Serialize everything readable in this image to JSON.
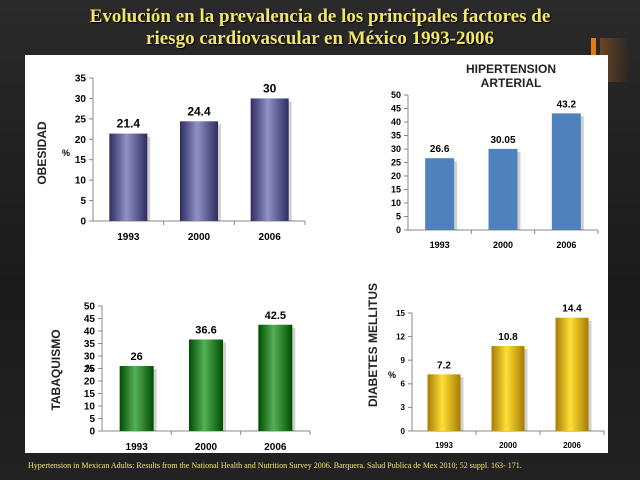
{
  "title": {
    "line1": "Evolución en la prevalencia de los principales factores de",
    "line2": "riesgo cardiovascular en México 1993-2006"
  },
  "footer": "Hypertension in Mexican Adults: Results from the National Health  and Nutrition Survey 2006. Barquera. Salud Publica de Mex 2010; 52 suppl. 163- 171.",
  "colors": {
    "title": "#f2e66a",
    "accent": "#e57a14"
  },
  "chart_data": [
    {
      "id": "obesidad",
      "type": "bar",
      "ylabel": "OBESIDAD",
      "unit": "%",
      "categories": [
        "1993",
        "2000",
        "2006"
      ],
      "values": [
        21.4,
        24.4,
        30
      ],
      "value_labels": [
        "21.4",
        "24.4",
        "30"
      ],
      "ylim": [
        0,
        35
      ],
      "yticks": [
        0,
        5,
        10,
        15,
        20,
        25,
        30,
        35
      ],
      "color": "#5a5a8f"
    },
    {
      "id": "hipertension",
      "type": "bar",
      "title": "HIPERTENSION ARTERIAL",
      "categories": [
        "1993",
        "2000",
        "2006"
      ],
      "values": [
        26.6,
        30.05,
        43.2
      ],
      "value_labels": [
        "26.6",
        "30.05",
        "43.2"
      ],
      "ylim": [
        0,
        50
      ],
      "yticks": [
        0,
        5,
        10,
        15,
        20,
        25,
        30,
        35,
        40,
        45,
        50
      ],
      "color": "#4f81bd"
    },
    {
      "id": "tabaquismo",
      "type": "bar",
      "ylabel": "TABAQUISMO",
      "unit": "%",
      "categories": [
        "1993",
        "2000",
        "2006"
      ],
      "values": [
        26,
        36.6,
        42.5
      ],
      "value_labels": [
        "26",
        "36.6",
        "42.5"
      ],
      "ylim": [
        0,
        50
      ],
      "yticks": [
        0,
        5,
        10,
        15,
        20,
        25,
        30,
        35,
        40,
        45,
        50
      ],
      "color": "#1e7a1e"
    },
    {
      "id": "diabetes",
      "type": "bar",
      "ylabel": "DIABETES MELLITUS",
      "unit": "%",
      "categories": [
        "1993",
        "2000",
        "2006"
      ],
      "values": [
        7.2,
        10.8,
        14.4
      ],
      "value_labels": [
        "7.2",
        "10.8",
        "14.4"
      ],
      "ylim": [
        0,
        15
      ],
      "yticks": [
        0,
        3,
        6,
        9,
        12,
        15
      ],
      "color": "#d4a800"
    }
  ]
}
